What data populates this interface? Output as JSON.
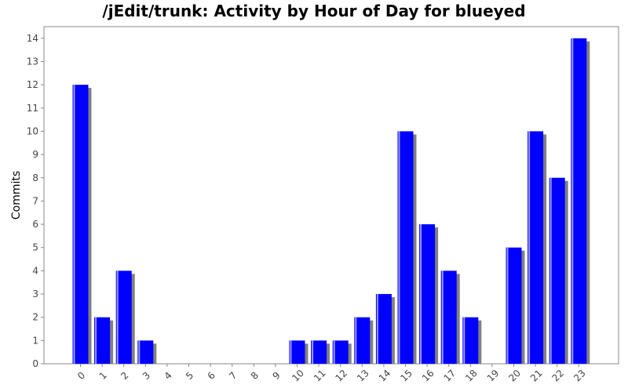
{
  "chart_data": {
    "type": "bar",
    "title": "/jEdit/trunk: Activity by Hour of Day for blueyed",
    "xlabel": "",
    "ylabel": "Commits",
    "categories": [
      "0",
      "1",
      "2",
      "3",
      "4",
      "5",
      "6",
      "7",
      "8",
      "9",
      "10",
      "11",
      "12",
      "13",
      "14",
      "15",
      "16",
      "17",
      "18",
      "19",
      "20",
      "21",
      "22",
      "23"
    ],
    "values": [
      12,
      2,
      4,
      1,
      0,
      0,
      0,
      0,
      0,
      0,
      1,
      1,
      1,
      2,
      3,
      10,
      6,
      4,
      2,
      0,
      5,
      10,
      8,
      14
    ],
    "ylim": [
      0,
      14.5
    ],
    "yticks": [
      0,
      1,
      2,
      3,
      4,
      5,
      6,
      7,
      8,
      9,
      10,
      11,
      12,
      13,
      14
    ],
    "bar_color": "#0000ff",
    "shadow_color": "#808080",
    "grid": false,
    "legend": "none"
  }
}
